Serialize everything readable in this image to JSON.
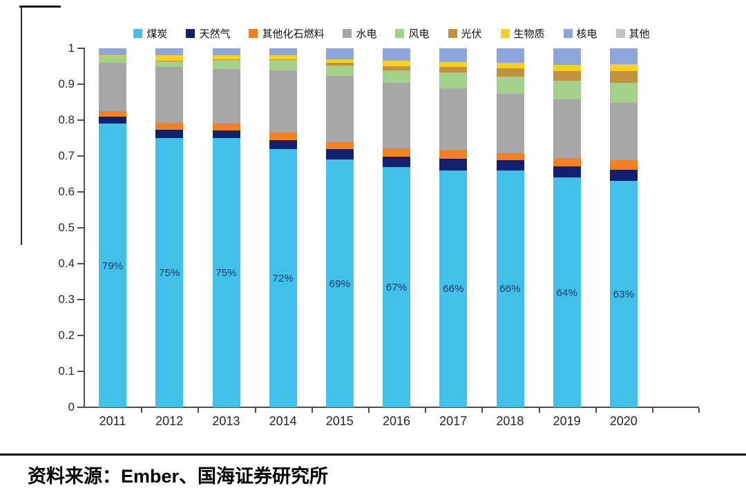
{
  "chart_data": {
    "type": "bar",
    "stacked": true,
    "percent_of_total": true,
    "title": "",
    "xlabel": "",
    "ylabel": "",
    "ylim": [
      0,
      1
    ],
    "y_ticks": [
      "0",
      "0.1",
      "0.2",
      "0.3",
      "0.4",
      "0.5",
      "0.6",
      "0.7",
      "0.8",
      "0.9",
      "1"
    ],
    "grid": false,
    "legend_position": "top",
    "categories": [
      "2011",
      "2012",
      "2013",
      "2014",
      "2015",
      "2016",
      "2017",
      "2018",
      "2019",
      "2020"
    ],
    "series": [
      {
        "name": "煤炭",
        "color": "#41C0EA",
        "values": [
          0.79,
          0.75,
          0.75,
          0.72,
          0.69,
          0.67,
          0.66,
          0.66,
          0.64,
          0.63
        ]
      },
      {
        "name": "天然气",
        "color": "#13206E",
        "values": [
          0.019,
          0.023,
          0.022,
          0.024,
          0.029,
          0.029,
          0.032,
          0.029,
          0.032,
          0.032
        ]
      },
      {
        "name": "其他化石燃料",
        "color": "#F28123",
        "values": [
          0.016,
          0.019,
          0.019,
          0.021,
          0.019,
          0.022,
          0.026,
          0.019,
          0.022,
          0.026
        ]
      },
      {
        "name": "水电",
        "color": "#A6A6A6",
        "values": [
          0.134,
          0.157,
          0.152,
          0.174,
          0.186,
          0.183,
          0.17,
          0.165,
          0.163,
          0.161
        ]
      },
      {
        "name": "风电",
        "color": "#A4D08A",
        "values": [
          0.019,
          0.016,
          0.026,
          0.028,
          0.028,
          0.035,
          0.045,
          0.048,
          0.053,
          0.054
        ]
      },
      {
        "name": "光伏",
        "color": "#C2913F",
        "values": [
          0.0,
          0.001,
          0.001,
          0.002,
          0.008,
          0.011,
          0.016,
          0.023,
          0.027,
          0.033
        ]
      },
      {
        "name": "生物质",
        "color": "#FAD020",
        "values": [
          0.003,
          0.014,
          0.01,
          0.011,
          0.01,
          0.016,
          0.013,
          0.016,
          0.017,
          0.019
        ]
      },
      {
        "name": "核电",
        "color": "#8DA6DB",
        "values": [
          0.019,
          0.02,
          0.02,
          0.02,
          0.03,
          0.034,
          0.038,
          0.04,
          0.046,
          0.045
        ]
      },
      {
        "name": "其他",
        "color": "#C3C3C3",
        "values": [
          0.0,
          0.0,
          0.0,
          0.0,
          0.0,
          0.0,
          0.0,
          0.0,
          0.0,
          0.0
        ]
      }
    ],
    "bar_labels": [
      "79%",
      "75%",
      "75%",
      "72%",
      "69%",
      "67%",
      "66%",
      "66%",
      "64%",
      "63%"
    ],
    "bar_label_color": "#1F3864",
    "axis_color": "#4d4d4d"
  },
  "source": {
    "label": "资料来源：Ember、国海证券研究所"
  }
}
